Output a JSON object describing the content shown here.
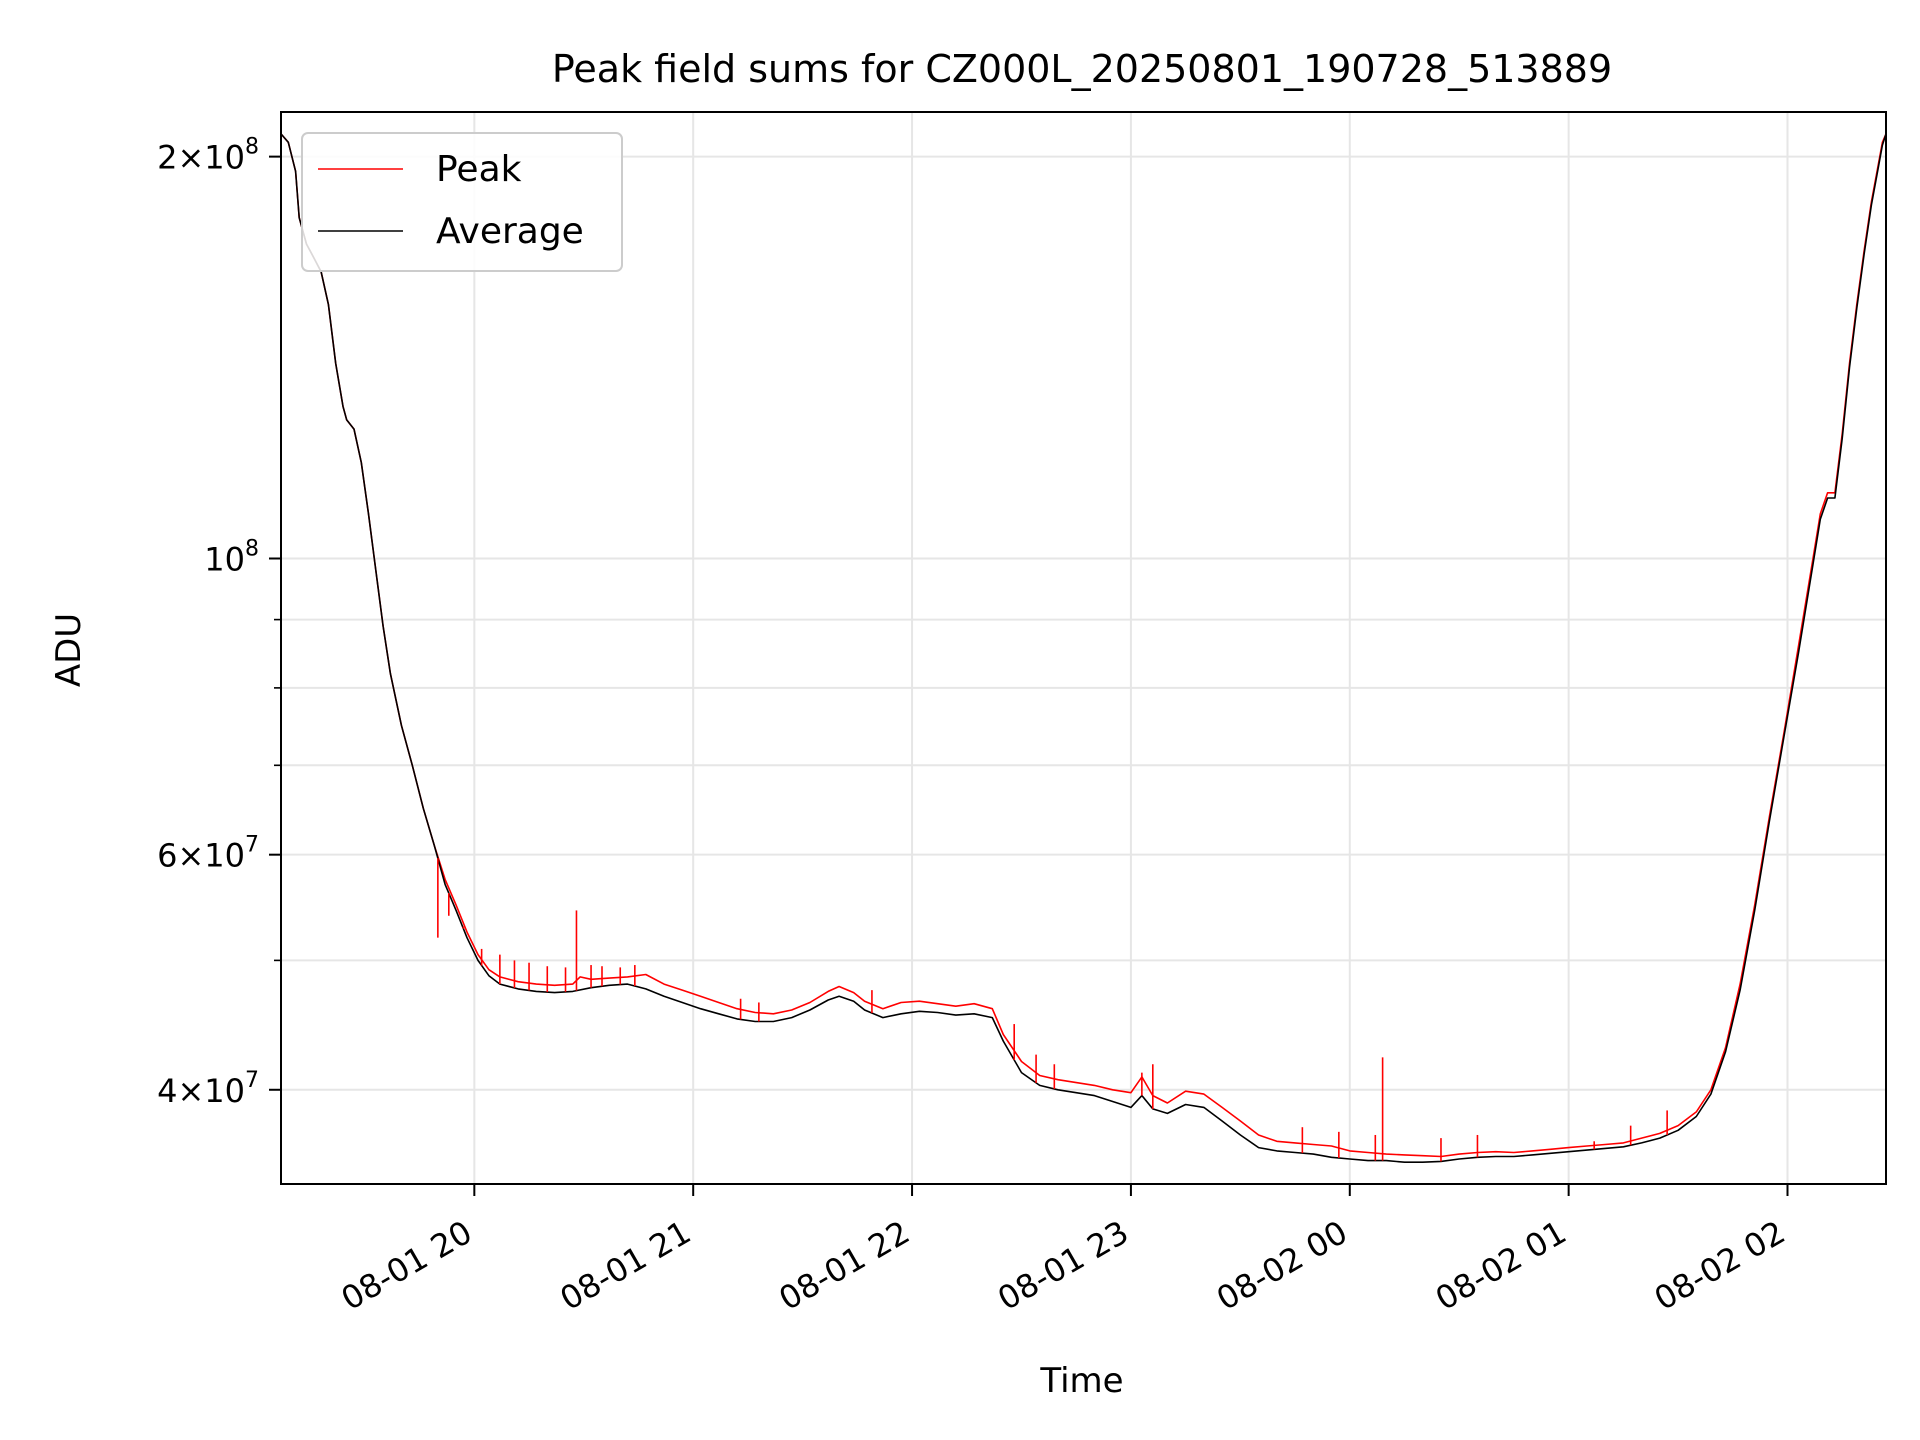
{
  "chart_data": {
    "type": "line",
    "title": "Peak field sums for CZ000L_20250801_190728_513889",
    "xlabel": "Time",
    "ylabel": "ADU",
    "yscale": "log",
    "ylim": [
      34000000,
      216000000
    ],
    "xlim": [
      0,
      440
    ],
    "grid": true,
    "legend_position": "top-left",
    "x_units": "minutes after 08-01 19:07",
    "x_ticks": [
      {
        "value": 53,
        "label": "08-01 20"
      },
      {
        "value": 113,
        "label": "08-01 21"
      },
      {
        "value": 173,
        "label": "08-01 22"
      },
      {
        "value": 233,
        "label": "08-01 23"
      },
      {
        "value": 293,
        "label": "08-02 00"
      },
      {
        "value": 353,
        "label": "08-02 01"
      },
      {
        "value": 413,
        "label": "08-02 02"
      }
    ],
    "y_ticks": [
      {
        "value": 40000000,
        "base": "4",
        "exp": "7",
        "mult": true
      },
      {
        "value": 60000000,
        "base": "6",
        "exp": "7",
        "mult": true
      },
      {
        "value": 100000000,
        "base": "",
        "exp": "8",
        "mult": false
      },
      {
        "value": 200000000,
        "base": "2",
        "exp": "8",
        "mult": true
      }
    ],
    "y_minor_ticks": [
      50000000,
      70000000,
      80000000,
      90000000
    ],
    "series": [
      {
        "name": "Peak",
        "color": "#ff0000",
        "points": [
          [
            0,
            208000000
          ],
          [
            2,
            205000000
          ],
          [
            4,
            195000000
          ],
          [
            5,
            180000000
          ],
          [
            7,
            172000000
          ],
          [
            9,
            168000000
          ],
          [
            11,
            164000000
          ],
          [
            13,
            155000000
          ],
          [
            15,
            140000000
          ],
          [
            17,
            130000000
          ],
          [
            18,
            127000000
          ],
          [
            20,
            125000000
          ],
          [
            22,
            118000000
          ],
          [
            24,
            108000000
          ],
          [
            26,
            98000000
          ],
          [
            28,
            89000000
          ],
          [
            30,
            82000000
          ],
          [
            33,
            75000000
          ],
          [
            36,
            70000000
          ],
          [
            39,
            65000000
          ],
          [
            42,
            61000000
          ],
          [
            45,
            57500000
          ],
          [
            48,
            55000000
          ],
          [
            51,
            52500000
          ],
          [
            54,
            50500000
          ],
          [
            57,
            49200000
          ],
          [
            60,
            48600000
          ],
          [
            65,
            48200000
          ],
          [
            70,
            48000000
          ],
          [
            75,
            47900000
          ],
          [
            80,
            48000000
          ],
          [
            82,
            48600000
          ],
          [
            85,
            48400000
          ],
          [
            90,
            48500000
          ],
          [
            95,
            48600000
          ],
          [
            100,
            48800000
          ],
          [
            105,
            48000000
          ],
          [
            110,
            47500000
          ],
          [
            115,
            47000000
          ],
          [
            120,
            46500000
          ],
          [
            125,
            46000000
          ],
          [
            130,
            45700000
          ],
          [
            135,
            45600000
          ],
          [
            140,
            45900000
          ],
          [
            145,
            46500000
          ],
          [
            150,
            47400000
          ],
          [
            153,
            47800000
          ],
          [
            157,
            47300000
          ],
          [
            160,
            46600000
          ],
          [
            165,
            46000000
          ],
          [
            170,
            46500000
          ],
          [
            175,
            46600000
          ],
          [
            180,
            46400000
          ],
          [
            185,
            46200000
          ],
          [
            190,
            46400000
          ],
          [
            195,
            46000000
          ],
          [
            198,
            44000000
          ],
          [
            203,
            42000000
          ],
          [
            208,
            41000000
          ],
          [
            213,
            40700000
          ],
          [
            218,
            40500000
          ],
          [
            223,
            40300000
          ],
          [
            228,
            40000000
          ],
          [
            233,
            39800000
          ],
          [
            236,
            40900000
          ],
          [
            239,
            39600000
          ],
          [
            243,
            39100000
          ],
          [
            248,
            39900000
          ],
          [
            253,
            39700000
          ],
          [
            258,
            38800000
          ],
          [
            263,
            37900000
          ],
          [
            268,
            37000000
          ],
          [
            273,
            36600000
          ],
          [
            278,
            36500000
          ],
          [
            283,
            36400000
          ],
          [
            288,
            36300000
          ],
          [
            293,
            36000000
          ],
          [
            298,
            35900000
          ],
          [
            303,
            35800000
          ],
          [
            308,
            35750000
          ],
          [
            313,
            35700000
          ],
          [
            318,
            35650000
          ],
          [
            323,
            35800000
          ],
          [
            328,
            35900000
          ],
          [
            333,
            35950000
          ],
          [
            338,
            35900000
          ],
          [
            343,
            36000000
          ],
          [
            348,
            36100000
          ],
          [
            353,
            36200000
          ],
          [
            358,
            36300000
          ],
          [
            363,
            36400000
          ],
          [
            368,
            36500000
          ],
          [
            373,
            36800000
          ],
          [
            378,
            37100000
          ],
          [
            383,
            37600000
          ],
          [
            388,
            38500000
          ],
          [
            392,
            40000000
          ],
          [
            396,
            43000000
          ],
          [
            400,
            48000000
          ],
          [
            404,
            55000000
          ],
          [
            408,
            64000000
          ],
          [
            412,
            74000000
          ],
          [
            416,
            86000000
          ],
          [
            420,
            100000000
          ],
          [
            422,
            108000000
          ],
          [
            424,
            112000000
          ],
          [
            426,
            112000000
          ],
          [
            428,
            124000000
          ],
          [
            430,
            140000000
          ],
          [
            432,
            155000000
          ],
          [
            434,
            170000000
          ],
          [
            436,
            185000000
          ],
          [
            438,
            198000000
          ],
          [
            439,
            205000000
          ],
          [
            440,
            208000000
          ]
        ]
      },
      {
        "name": "Average",
        "color": "#000000",
        "points": [
          [
            0,
            208000000
          ],
          [
            2,
            205000000
          ],
          [
            4,
            195000000
          ],
          [
            5,
            180000000
          ],
          [
            7,
            172000000
          ],
          [
            9,
            168000000
          ],
          [
            11,
            164000000
          ],
          [
            13,
            155000000
          ],
          [
            15,
            140000000
          ],
          [
            17,
            130000000
          ],
          [
            18,
            127000000
          ],
          [
            20,
            125000000
          ],
          [
            22,
            118000000
          ],
          [
            24,
            108000000
          ],
          [
            26,
            98000000
          ],
          [
            28,
            89000000
          ],
          [
            30,
            82000000
          ],
          [
            33,
            75000000
          ],
          [
            36,
            70000000
          ],
          [
            39,
            65000000
          ],
          [
            42,
            61000000
          ],
          [
            45,
            57000000
          ],
          [
            48,
            54500000
          ],
          [
            51,
            52000000
          ],
          [
            54,
            50000000
          ],
          [
            57,
            48700000
          ],
          [
            60,
            48000000
          ],
          [
            65,
            47600000
          ],
          [
            70,
            47400000
          ],
          [
            75,
            47300000
          ],
          [
            80,
            47400000
          ],
          [
            85,
            47700000
          ],
          [
            90,
            47900000
          ],
          [
            95,
            48000000
          ],
          [
            100,
            47600000
          ],
          [
            105,
            47000000
          ],
          [
            110,
            46500000
          ],
          [
            115,
            46000000
          ],
          [
            120,
            45600000
          ],
          [
            125,
            45200000
          ],
          [
            130,
            45000000
          ],
          [
            135,
            45000000
          ],
          [
            140,
            45300000
          ],
          [
            145,
            45900000
          ],
          [
            150,
            46700000
          ],
          [
            153,
            47000000
          ],
          [
            157,
            46600000
          ],
          [
            160,
            45900000
          ],
          [
            165,
            45300000
          ],
          [
            170,
            45600000
          ],
          [
            175,
            45800000
          ],
          [
            180,
            45700000
          ],
          [
            185,
            45500000
          ],
          [
            190,
            45600000
          ],
          [
            195,
            45300000
          ],
          [
            198,
            43500000
          ],
          [
            203,
            41200000
          ],
          [
            208,
            40300000
          ],
          [
            213,
            40000000
          ],
          [
            218,
            39800000
          ],
          [
            223,
            39600000
          ],
          [
            228,
            39200000
          ],
          [
            233,
            38800000
          ],
          [
            236,
            39600000
          ],
          [
            239,
            38700000
          ],
          [
            243,
            38400000
          ],
          [
            248,
            39000000
          ],
          [
            253,
            38800000
          ],
          [
            258,
            37900000
          ],
          [
            263,
            37000000
          ],
          [
            268,
            36200000
          ],
          [
            273,
            36000000
          ],
          [
            278,
            35900000
          ],
          [
            283,
            35800000
          ],
          [
            288,
            35600000
          ],
          [
            293,
            35500000
          ],
          [
            298,
            35400000
          ],
          [
            303,
            35400000
          ],
          [
            308,
            35300000
          ],
          [
            313,
            35300000
          ],
          [
            318,
            35350000
          ],
          [
            323,
            35500000
          ],
          [
            328,
            35600000
          ],
          [
            333,
            35650000
          ],
          [
            338,
            35650000
          ],
          [
            343,
            35750000
          ],
          [
            348,
            35850000
          ],
          [
            353,
            35950000
          ],
          [
            358,
            36050000
          ],
          [
            363,
            36150000
          ],
          [
            368,
            36250000
          ],
          [
            373,
            36500000
          ],
          [
            378,
            36800000
          ],
          [
            383,
            37300000
          ],
          [
            388,
            38200000
          ],
          [
            392,
            39700000
          ],
          [
            396,
            42700000
          ],
          [
            400,
            47500000
          ],
          [
            404,
            54500000
          ],
          [
            408,
            63500000
          ],
          [
            412,
            73500000
          ],
          [
            416,
            85000000
          ],
          [
            420,
            99000000
          ],
          [
            422,
            107000000
          ],
          [
            424,
            111000000
          ],
          [
            426,
            111000000
          ],
          [
            428,
            123000000
          ],
          [
            430,
            139000000
          ],
          [
            432,
            154000000
          ],
          [
            434,
            169000000
          ],
          [
            436,
            184000000
          ],
          [
            438,
            197000000
          ],
          [
            439,
            204000000
          ],
          [
            440,
            208000000
          ]
        ]
      }
    ],
    "peak_spikes": [
      [
        43,
        52000000
      ],
      [
        46,
        54000000
      ],
      [
        50,
        53000000
      ],
      [
        55,
        51000000
      ],
      [
        60,
        50500000
      ],
      [
        64,
        50000000
      ],
      [
        68,
        49800000
      ],
      [
        73,
        49500000
      ],
      [
        78,
        49400000
      ],
      [
        81,
        54500000
      ],
      [
        85,
        49600000
      ],
      [
        88,
        49500000
      ],
      [
        93,
        49400000
      ],
      [
        97,
        49600000
      ],
      [
        126,
        46800000
      ],
      [
        131,
        46500000
      ],
      [
        162,
        47500000
      ],
      [
        201,
        44800000
      ],
      [
        207,
        42500000
      ],
      [
        212,
        41800000
      ],
      [
        236,
        41200000
      ],
      [
        239,
        41800000
      ],
      [
        280,
        37500000
      ],
      [
        290,
        37200000
      ],
      [
        300,
        37000000
      ],
      [
        302,
        42300000
      ],
      [
        318,
        36800000
      ],
      [
        328,
        37000000
      ],
      [
        360,
        36600000
      ],
      [
        370,
        37600000
      ],
      [
        380,
        38600000
      ]
    ]
  }
}
